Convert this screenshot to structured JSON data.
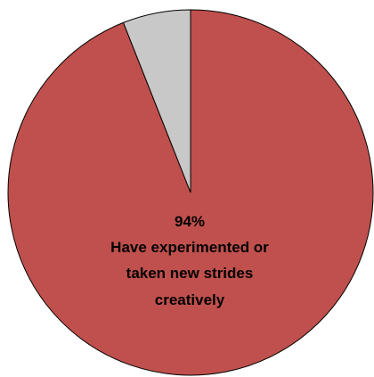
{
  "chart_data": {
    "type": "pie",
    "start_angle_deg": 0,
    "direction": "clockwise",
    "slices": [
      {
        "value": 94,
        "color": "#c0504d"
      },
      {
        "value": 6,
        "color": "#c8c8c8"
      }
    ],
    "annotations": [
      {
        "slice_index": 0,
        "percent_label": "94%",
        "text_lines": [
          "Have experimented or",
          "taken new strides",
          "creatively"
        ]
      }
    ]
  }
}
